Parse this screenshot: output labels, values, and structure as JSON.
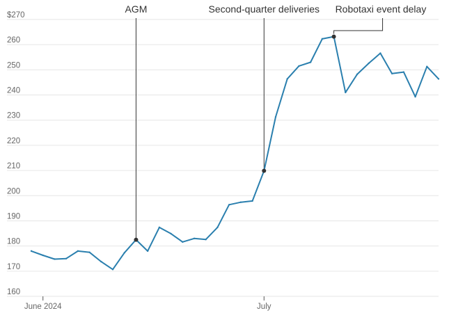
{
  "chart_data": {
    "type": "line",
    "title": "",
    "xlabel": "",
    "ylabel": "",
    "ylim": [
      160,
      270
    ],
    "y_ticks": [
      160,
      170,
      180,
      190,
      200,
      210,
      220,
      230,
      240,
      250,
      260,
      270
    ],
    "y_tick_labels": [
      "160",
      "170",
      "180",
      "190",
      "200",
      "210",
      "220",
      "230",
      "240",
      "250",
      "260",
      "$270"
    ],
    "x_ticks": [
      {
        "index": 1,
        "label": "June 2024"
      },
      {
        "index": 20,
        "label": "July"
      }
    ],
    "grid": true,
    "series": [
      {
        "color": "#1f77b4",
        "values": [
          178,
          176.3,
          174.8,
          175,
          178,
          177.5,
          173.8,
          170.7,
          177.3,
          182.5,
          178,
          187.4,
          184.9,
          181.6,
          183,
          182.6,
          187.4,
          196.4,
          197.4,
          197.9,
          209.9,
          231.3,
          246.4,
          251.5,
          253,
          262.3,
          263.2,
          241,
          248.2,
          252.6,
          256.6,
          248.5,
          249.1,
          239.3,
          251.3,
          246.4
        ]
      }
    ],
    "annotations": [
      {
        "label": "AGM",
        "index": 9,
        "value": 182.5
      },
      {
        "label": "Second-quarter deliveries",
        "index": 20,
        "value": 209.9
      },
      {
        "label": "Robotaxi event delay",
        "index": 26,
        "value": 263.2
      }
    ]
  },
  "colors": {
    "line": "#2a7fae",
    "grid": "#e6e6e6",
    "annotation": "#333333",
    "axis": "#555555"
  }
}
